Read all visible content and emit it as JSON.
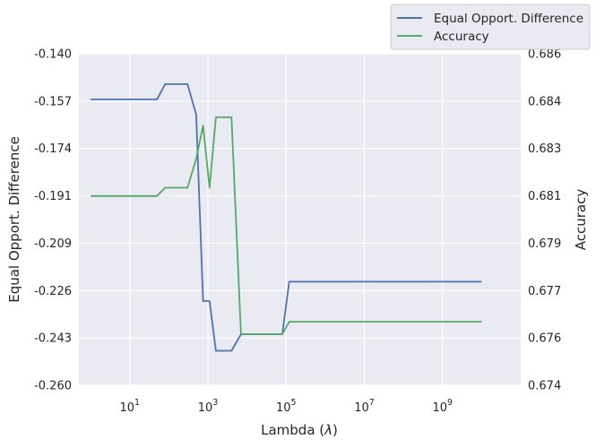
{
  "chart_data": {
    "type": "line",
    "xlabel_text": "Lambda (",
    "xlabel_symbol": "λ",
    "xlabel_close": ")",
    "ylabel_left": "Equal Opport. Difference",
    "ylabel_right": "Accuracy",
    "x_scale": "log",
    "xlim": [
      0.5,
      100000000000
    ],
    "x_ticks": [
      10,
      1000,
      100000,
      10000000,
      1000000000
    ],
    "x_tick_labels": [
      {
        "base": "10",
        "exp": "1"
      },
      {
        "base": "10",
        "exp": "3"
      },
      {
        "base": "10",
        "exp": "5"
      },
      {
        "base": "10",
        "exp": "7"
      },
      {
        "base": "10",
        "exp": "9"
      }
    ],
    "ylim_left": [
      -0.26,
      -0.14
    ],
    "y_ticks_left": [
      "-0.140",
      "-0.157",
      "-0.174",
      "-0.191",
      "-0.209",
      "-0.226",
      "-0.243",
      "-0.260"
    ],
    "ylim_right": [
      0.674,
      0.686
    ],
    "y_ticks_right": [
      "0.686",
      "0.684",
      "0.683",
      "0.681",
      "0.679",
      "0.677",
      "0.676",
      "0.674"
    ],
    "grid": true,
    "legend_placement": "top-right, outside",
    "series": [
      {
        "name": "Equal Opport. Difference",
        "axis": "left",
        "color": "#4c72b0",
        "x": [
          1,
          50,
          80,
          300,
          500,
          750,
          1100,
          1600,
          4000,
          7000,
          80000,
          120000,
          10000000000
        ],
        "y": [
          -0.1565,
          -0.1565,
          -0.151,
          -0.151,
          -0.162,
          -0.2295,
          -0.2295,
          -0.2475,
          -0.2475,
          -0.2415,
          -0.2415,
          -0.2225,
          -0.2225
        ]
      },
      {
        "name": "Accuracy",
        "axis": "right",
        "color": "#55a868",
        "x": [
          1,
          50,
          80,
          300,
          500,
          750,
          1100,
          1600,
          4000,
          7000,
          80000,
          120000,
          10000000000
        ],
        "y": [
          0.68085,
          0.68085,
          0.68115,
          0.68115,
          0.6822,
          0.6834,
          0.68115,
          0.6837,
          0.6837,
          0.67585,
          0.67585,
          0.6763,
          0.6763
        ]
      }
    ]
  }
}
